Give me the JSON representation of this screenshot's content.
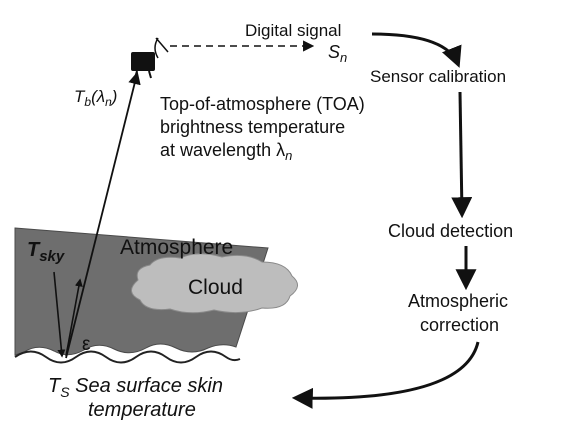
{
  "signal": {
    "label": "Digital signal",
    "symbol": "S",
    "subscript": "n"
  },
  "sensor": {
    "tb_main": "T",
    "tb_sub": "b",
    "tb_arg": "(λ",
    "tb_arg_sub": "n",
    "tb_close": ")"
  },
  "toa": {
    "line1": "Top-of-atmosphere (TOA)",
    "line2": "brightness temperature",
    "line3": "at wavelength λ",
    "line3_sub": "n"
  },
  "flow": {
    "step1": "Sensor calibration",
    "step2": "Cloud detection",
    "step3_line1": "Atmospheric",
    "step3_line2": "correction"
  },
  "atmosphere": {
    "label": "Atmosphere",
    "cloud": "Cloud",
    "tsky_main": "T",
    "tsky_sub": "sky",
    "emissivity": "ε"
  },
  "surface": {
    "ts_main": "T",
    "ts_sub": "S",
    "line1": " Sea surface skin",
    "line2": "temperature"
  },
  "colors": {
    "atmosphere_fill": "#6e6e6e",
    "cloud_fill": "#bdbdbd",
    "line": "#111111",
    "background": "#ffffff"
  }
}
